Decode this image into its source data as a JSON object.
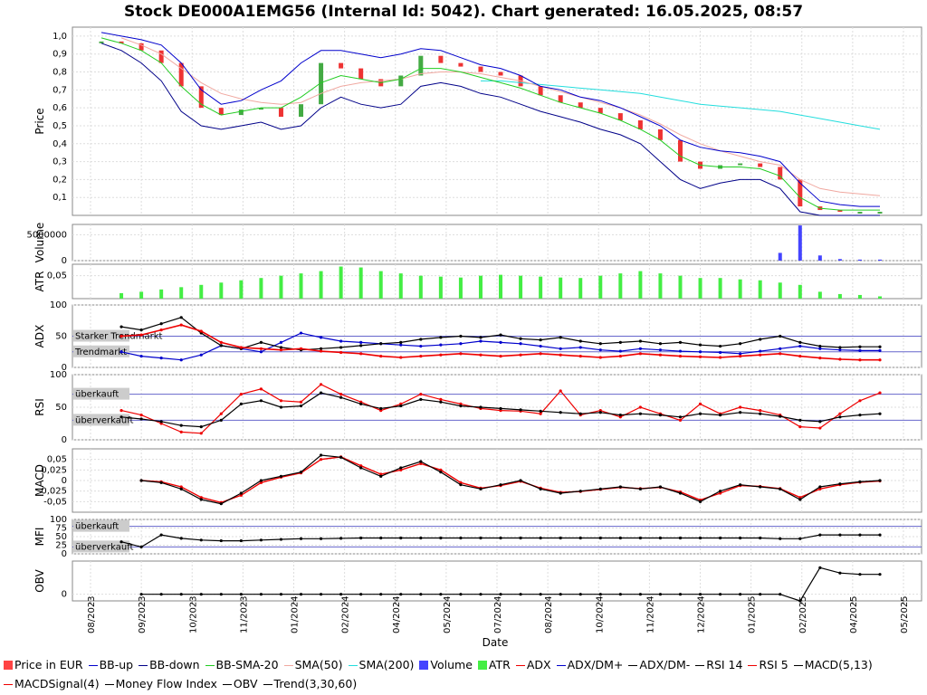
{
  "chart_data": {
    "type": "line",
    "title": "Stock DE000A1EMG56 (Internal Id: 5042). Chart generated: 16.05.2025, 08:57",
    "xlabel": "Date",
    "x_ticks": [
      "08/2023",
      "09/2023",
      "10/2023",
      "11/2023",
      "01/2024",
      "02/2024",
      "04/2024",
      "05/2024",
      "07/2024",
      "08/2024",
      "10/2024",
      "11/2024",
      "12/2024",
      "01/2025",
      "02/2025",
      "04/2025",
      "05/2025"
    ],
    "panels": [
      {
        "id": "price",
        "ylabel": "Price",
        "ylim": [
          0,
          1.05
        ],
        "yticks": [
          "0,1",
          "0,2",
          "0,3",
          "0,4",
          "0,5",
          "0,6",
          "0,7",
          "0,8",
          "0,9",
          "1,0"
        ],
        "price": [
          0.97,
          0.96,
          0.92,
          0.85,
          0.72,
          0.6,
          0.56,
          0.59,
          0.6,
          0.55,
          0.62,
          0.85,
          0.82,
          0.76,
          0.72,
          0.78,
          0.89,
          0.85,
          0.83,
          0.8,
          0.78,
          0.72,
          0.67,
          0.63,
          0.6,
          0.57,
          0.53,
          0.48,
          0.42,
          0.3,
          0.26,
          0.28,
          0.29,
          0.27,
          0.2,
          0.05,
          0.03,
          0.02,
          0.02,
          0.02
        ],
        "bb_up": [
          1.02,
          1.0,
          0.98,
          0.95,
          0.85,
          0.7,
          0.62,
          0.64,
          0.7,
          0.75,
          0.85,
          0.92,
          0.92,
          0.9,
          0.88,
          0.9,
          0.93,
          0.92,
          0.88,
          0.84,
          0.82,
          0.78,
          0.72,
          0.7,
          0.66,
          0.64,
          0.6,
          0.55,
          0.5,
          0.42,
          0.38,
          0.36,
          0.35,
          0.33,
          0.3,
          0.18,
          0.08,
          0.06,
          0.05,
          0.05
        ],
        "bb_down": [
          0.96,
          0.92,
          0.85,
          0.75,
          0.58,
          0.5,
          0.48,
          0.5,
          0.52,
          0.48,
          0.5,
          0.6,
          0.66,
          0.62,
          0.6,
          0.62,
          0.72,
          0.74,
          0.72,
          0.68,
          0.66,
          0.62,
          0.58,
          0.55,
          0.52,
          0.48,
          0.45,
          0.4,
          0.3,
          0.2,
          0.15,
          0.18,
          0.2,
          0.2,
          0.15,
          0.02,
          0.0,
          0.0,
          0.0,
          0.0
        ],
        "bb_sma20": [
          0.99,
          0.96,
          0.92,
          0.85,
          0.72,
          0.62,
          0.56,
          0.58,
          0.6,
          0.6,
          0.66,
          0.74,
          0.78,
          0.76,
          0.74,
          0.76,
          0.82,
          0.82,
          0.8,
          0.77,
          0.74,
          0.71,
          0.67,
          0.63,
          0.6,
          0.57,
          0.53,
          0.48,
          0.42,
          0.33,
          0.28,
          0.27,
          0.27,
          0.26,
          0.22,
          0.1,
          0.04,
          0.03,
          0.03,
          0.03
        ],
        "sma50": [
          null,
          0.99,
          0.95,
          0.9,
          0.82,
          0.74,
          0.68,
          0.65,
          0.63,
          0.62,
          0.63,
          0.68,
          0.72,
          0.74,
          0.75,
          0.76,
          0.79,
          0.8,
          0.8,
          0.79,
          0.77,
          0.75,
          0.72,
          0.69,
          0.66,
          0.63,
          0.6,
          0.56,
          0.51,
          0.45,
          0.4,
          0.36,
          0.33,
          0.3,
          0.28,
          0.2,
          0.15,
          0.13,
          0.12,
          0.11
        ],
        "sma200": [
          null,
          null,
          null,
          null,
          null,
          null,
          null,
          null,
          null,
          null,
          null,
          null,
          null,
          null,
          null,
          null,
          null,
          null,
          null,
          0.75,
          0.75,
          0.74,
          0.73,
          0.72,
          0.71,
          0.7,
          0.69,
          0.68,
          0.66,
          0.64,
          0.62,
          0.61,
          0.6,
          0.59,
          0.58,
          0.56,
          0.54,
          0.52,
          0.5,
          0.48
        ]
      },
      {
        "id": "volume",
        "ylabel": "Volume",
        "yticks": [
          "0",
          "5000000"
        ],
        "ylim": [
          0,
          7000000
        ],
        "values": [
          0,
          0,
          0,
          0,
          0,
          0,
          0,
          0,
          0,
          0,
          0,
          0,
          0,
          0,
          0,
          0,
          0,
          0,
          0,
          0,
          0,
          0,
          0,
          0,
          0,
          0,
          0,
          0,
          0,
          0,
          0,
          0,
          0,
          0,
          1500000,
          6800000,
          1000000,
          300000,
          200000,
          200000
        ]
      },
      {
        "id": "atr",
        "ylabel": "ATR",
        "yticks": [
          "0,05"
        ],
        "ylim": [
          0,
          0.075
        ],
        "values": [
          0,
          0.012,
          0.015,
          0.02,
          0.025,
          0.03,
          0.035,
          0.04,
          0.045,
          0.05,
          0.055,
          0.06,
          0.07,
          0.068,
          0.06,
          0.055,
          0.05,
          0.048,
          0.046,
          0.05,
          0.052,
          0.05,
          0.048,
          0.046,
          0.045,
          0.05,
          0.055,
          0.06,
          0.055,
          0.05,
          0.045,
          0.045,
          0.042,
          0.04,
          0.035,
          0.03,
          0.015,
          0.01,
          0.008,
          0.005
        ]
      },
      {
        "id": "adx",
        "ylabel": "ADX",
        "ylim": [
          0,
          100
        ],
        "yticks": [
          "0",
          "50",
          "100"
        ],
        "hlines": [
          {
            "value": 50,
            "label": "Starker Trendmarkt"
          },
          {
            "value": 25,
            "label": "Trendmarkt"
          }
        ],
        "adx": [
          null,
          50,
          52,
          60,
          68,
          58,
          40,
          32,
          30,
          28,
          30,
          26,
          24,
          22,
          18,
          16,
          18,
          20,
          22,
          20,
          18,
          20,
          22,
          20,
          18,
          16,
          18,
          22,
          20,
          18,
          17,
          16,
          18,
          20,
          22,
          18,
          15,
          13,
          12,
          12
        ],
        "dm_plus": [
          null,
          25,
          18,
          15,
          12,
          20,
          35,
          30,
          25,
          40,
          55,
          48,
          42,
          40,
          38,
          36,
          34,
          36,
          38,
          42,
          40,
          38,
          34,
          30,
          32,
          28,
          26,
          30,
          28,
          26,
          25,
          24,
          22,
          26,
          30,
          34,
          30,
          28,
          27,
          27
        ],
        "dm_minus": [
          null,
          65,
          60,
          70,
          80,
          55,
          35,
          30,
          40,
          32,
          28,
          30,
          32,
          35,
          38,
          40,
          45,
          48,
          50,
          48,
          52,
          46,
          44,
          48,
          42,
          38,
          40,
          42,
          38,
          40,
          36,
          34,
          38,
          45,
          50,
          40,
          34,
          32,
          33,
          33
        ]
      },
      {
        "id": "rsi",
        "ylabel": "RSI",
        "ylim": [
          0,
          100
        ],
        "yticks": [
          "0",
          "50",
          "100"
        ],
        "hlines": [
          {
            "value": 70,
            "label": "überkauft"
          },
          {
            "value": 30,
            "label": "überverkauft"
          }
        ],
        "rsi14": [
          null,
          35,
          32,
          28,
          22,
          20,
          30,
          55,
          60,
          50,
          52,
          72,
          65,
          55,
          48,
          52,
          62,
          58,
          52,
          50,
          48,
          46,
          44,
          42,
          40,
          42,
          38,
          40,
          38,
          35,
          40,
          38,
          42,
          40,
          36,
          30,
          28,
          35,
          38,
          40
        ],
        "rsi5": [
          null,
          45,
          38,
          25,
          12,
          10,
          40,
          70,
          78,
          60,
          58,
          85,
          70,
          58,
          45,
          55,
          70,
          62,
          55,
          48,
          45,
          44,
          40,
          75,
          38,
          45,
          35,
          50,
          40,
          30,
          55,
          40,
          50,
          45,
          38,
          20,
          18,
          40,
          60,
          72
        ]
      },
      {
        "id": "macd",
        "ylabel": "MACD",
        "ylim": [
          -0.075,
          0.075
        ],
        "yticks": [
          "-0,05",
          "-0,025",
          "0",
          "0,025",
          "0,05"
        ],
        "macd": [
          null,
          null,
          0,
          -0.005,
          -0.02,
          -0.045,
          -0.055,
          -0.03,
          0.0,
          0.01,
          0.02,
          0.06,
          0.055,
          0.03,
          0.01,
          0.03,
          0.045,
          0.02,
          -0.01,
          -0.02,
          -0.01,
          0.0,
          -0.02,
          -0.03,
          -0.025,
          -0.02,
          -0.015,
          -0.02,
          -0.015,
          -0.03,
          -0.05,
          -0.025,
          -0.01,
          -0.015,
          -0.02,
          -0.045,
          -0.015,
          -0.008,
          -0.003,
          0.0
        ],
        "signal": [
          null,
          null,
          0,
          -0.003,
          -0.015,
          -0.04,
          -0.052,
          -0.035,
          -0.005,
          0.008,
          0.018,
          0.05,
          0.056,
          0.035,
          0.015,
          0.025,
          0.04,
          0.025,
          -0.005,
          -0.018,
          -0.012,
          -0.002,
          -0.018,
          -0.028,
          -0.026,
          -0.021,
          -0.016,
          -0.019,
          -0.016,
          -0.027,
          -0.046,
          -0.03,
          -0.012,
          -0.014,
          -0.019,
          -0.04,
          -0.02,
          -0.01,
          -0.004,
          -0.001
        ]
      },
      {
        "id": "mfi",
        "ylabel": "MFI",
        "ylim": [
          0,
          100
        ],
        "yticks": [
          "0",
          "25",
          "50",
          "75",
          "100"
        ],
        "hlines": [
          {
            "value": 80,
            "label": "überkauft"
          },
          {
            "value": 20,
            "label": "überverkauft"
          }
        ],
        "values": [
          null,
          35,
          20,
          55,
          45,
          40,
          38,
          38,
          40,
          42,
          44,
          44,
          45,
          46,
          46,
          46,
          46,
          46,
          46,
          46,
          46,
          46,
          46,
          46,
          46,
          46,
          46,
          46,
          46,
          46,
          46,
          46,
          46,
          46,
          44,
          44,
          55,
          55,
          55,
          55
        ]
      },
      {
        "id": "obv",
        "ylabel": "OBV",
        "yticks": [
          "0"
        ],
        "ylim": [
          -5,
          25
        ],
        "values": [
          null,
          null,
          0,
          0,
          0,
          0,
          0,
          0,
          0,
          0,
          0,
          0,
          0,
          0,
          0,
          0,
          0,
          0,
          0,
          0,
          0,
          0,
          0,
          0,
          0,
          0,
          0,
          0,
          0,
          0,
          0,
          0,
          0,
          0,
          0,
          -5,
          20,
          16,
          15,
          15
        ]
      }
    ],
    "legend": [
      {
        "label": "Price in EUR",
        "color": "#ff4444",
        "kind": "box"
      },
      {
        "label": "BB-up",
        "color": "#0000cc",
        "kind": "line"
      },
      {
        "label": "BB-down",
        "color": "#000088",
        "kind": "line"
      },
      {
        "label": "BB-SMA-20",
        "color": "#22cc22",
        "kind": "line"
      },
      {
        "label": "SMA(50)",
        "color": "#f0a8a0",
        "kind": "line"
      },
      {
        "label": "SMA(200)",
        "color": "#22dddd",
        "kind": "line"
      },
      {
        "label": "Volume",
        "color": "#4444ff",
        "kind": "box"
      },
      {
        "label": "ATR",
        "color": "#44ee44",
        "kind": "box"
      },
      {
        "label": "ADX",
        "color": "#ee0000",
        "kind": "marker"
      },
      {
        "label": "ADX/DM+",
        "color": "#0000cc",
        "kind": "marker"
      },
      {
        "label": "ADX/DM-",
        "color": "#000000",
        "kind": "marker"
      },
      {
        "label": "RSI 14",
        "color": "#000000",
        "kind": "marker"
      },
      {
        "label": "RSI 5",
        "color": "#ee0000",
        "kind": "marker"
      },
      {
        "label": "MACD(5,13)",
        "color": "#000000",
        "kind": "marker"
      },
      {
        "label": "MACDSignal(4)",
        "color": "#ee0000",
        "kind": "marker"
      },
      {
        "label": "Money Flow Index",
        "color": "#000000",
        "kind": "marker"
      },
      {
        "label": "OBV",
        "color": "#000000",
        "kind": "marker"
      },
      {
        "label": "Trend(3,30,60)",
        "color": "#000000",
        "kind": "line"
      }
    ]
  }
}
